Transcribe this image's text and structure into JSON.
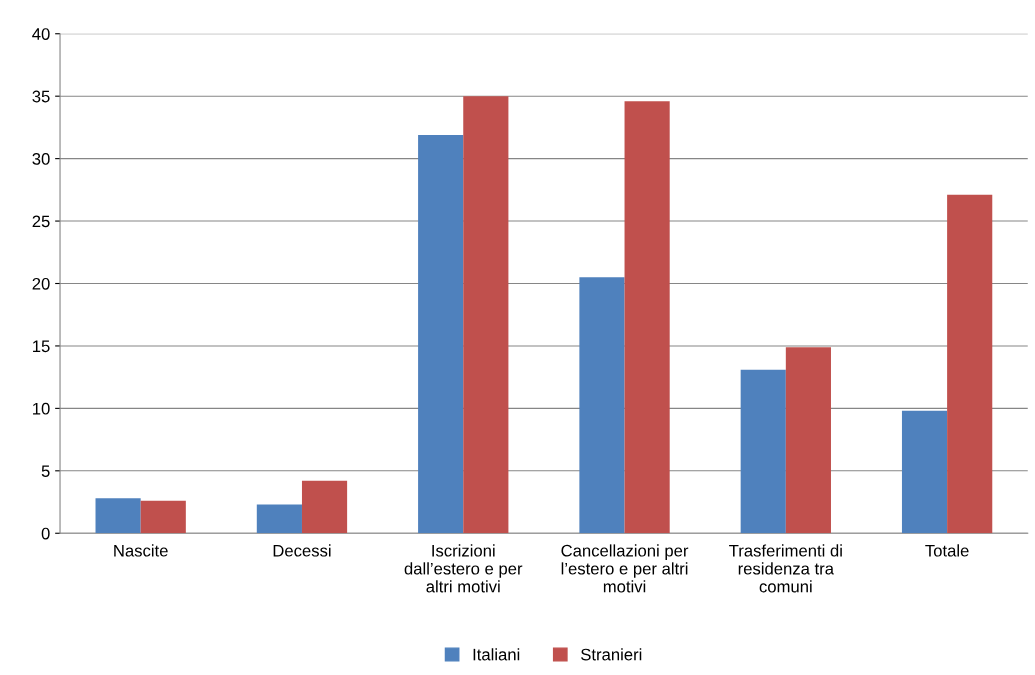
{
  "chart_data": {
    "type": "bar",
    "categories": [
      "Nascite",
      "Decessi",
      "Iscrizioni\ndall’estero e per\naltri motivi",
      "Cancellazioni per\nl’estero e per altri\nmotivi",
      "Trasferimenti di\nresidenza tra\ncomuni",
      "Totale"
    ],
    "series": [
      {
        "name": "Italiani",
        "color": "#4f81bd",
        "values": [
          2.8,
          2.3,
          31.9,
          20.5,
          13.1,
          9.8
        ]
      },
      {
        "name": "Stranieri",
        "color": "#c0504d",
        "values": [
          2.6,
          4.2,
          35.0,
          34.6,
          14.9,
          27.1
        ]
      }
    ],
    "ylim": [
      0,
      40
    ],
    "yticks": [
      0,
      5,
      10,
      15,
      20,
      25,
      30,
      35,
      40
    ],
    "grid": "y",
    "legend": "bottom"
  }
}
